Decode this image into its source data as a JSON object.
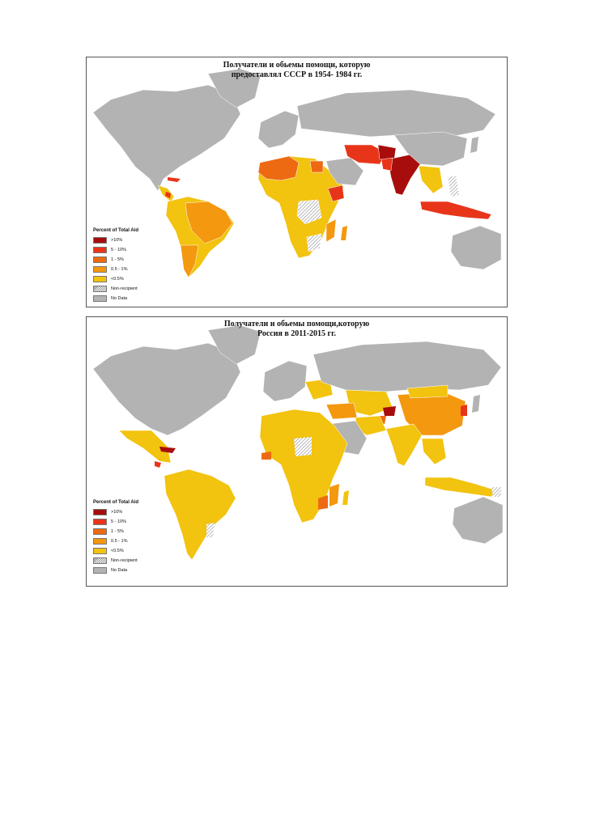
{
  "colors": {
    "gt10": "#a80d0d",
    "c5_10": "#e8351a",
    "c1_5": "#ee6a12",
    "c05_1": "#f3980f",
    "lt05": "#f2c30f",
    "non_recipient": "hatch",
    "no_data": "#b3b3b3"
  },
  "maps": [
    {
      "title_line1": "Получатели и обьемы помощи, которую",
      "title_line2": "предоставлял СССР в 1954- 1984 гг.",
      "legend": {
        "title": "Percent of Total Aid",
        "items": [
          ">10%",
          "5 - 10%",
          "1 - 5%",
          "0.5 - 1%",
          "<0.5%",
          "Non-recipient",
          "No Data"
        ]
      }
    },
    {
      "title_line1": "Получатели и обьемы помощи,которую",
      "title_line2": "Россия в 2011-2015 гг.",
      "legend": {
        "title": "Percent of Total Aid",
        "items": [
          ">10%",
          "5 - 10%",
          "1 - 5%",
          "0.5 - 1%",
          "<0.5%",
          "Non-recipient",
          "No Data"
        ]
      }
    }
  ]
}
